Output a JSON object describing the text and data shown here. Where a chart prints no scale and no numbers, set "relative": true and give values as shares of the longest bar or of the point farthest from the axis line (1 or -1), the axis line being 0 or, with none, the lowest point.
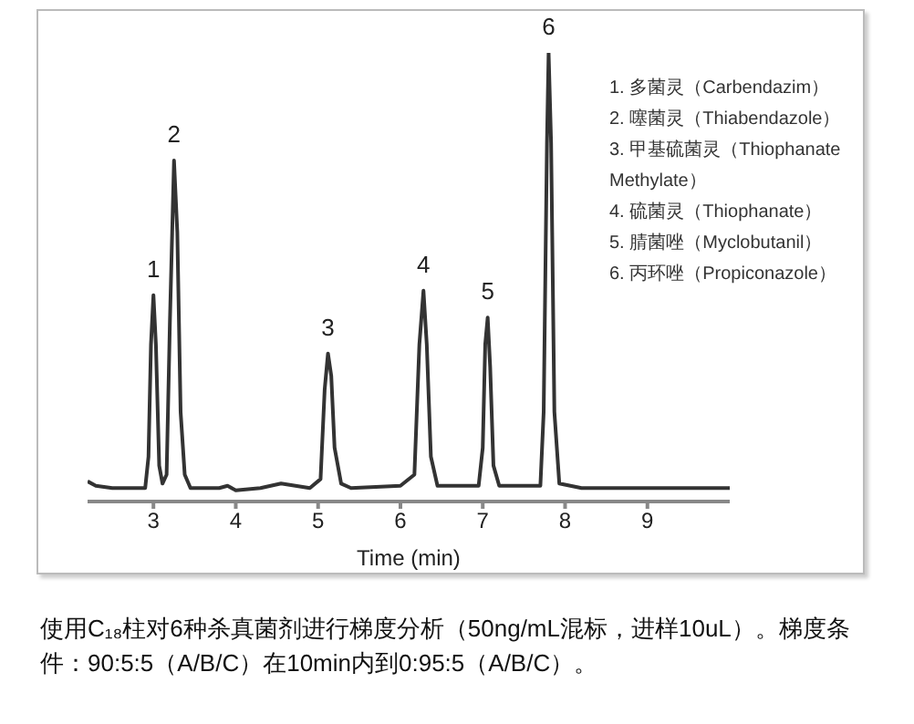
{
  "chart_data": {
    "type": "line",
    "relative": true,
    "xlabel": "Time (min)",
    "xlim": [
      2.2,
      10
    ],
    "xticks": [
      3,
      4,
      5,
      6,
      7,
      8,
      9
    ],
    "grid": false,
    "legend": false,
    "marker": "none",
    "line_style": "solid",
    "x": [
      2.2,
      2.3,
      2.5,
      2.9,
      2.94,
      2.97,
      3.0,
      3.03,
      3.07,
      3.11,
      3.16,
      3.2,
      3.25,
      3.29,
      3.33,
      3.38,
      3.45,
      3.8,
      3.9,
      4.0,
      4.3,
      4.55,
      4.9,
      5.03,
      5.08,
      5.12,
      5.16,
      5.2,
      5.28,
      5.4,
      6.0,
      6.17,
      6.23,
      6.28,
      6.32,
      6.37,
      6.45,
      6.95,
      7.0,
      7.03,
      7.06,
      7.09,
      7.13,
      7.2,
      7.7,
      7.74,
      7.78,
      7.8,
      7.83,
      7.87,
      7.93,
      8.2,
      10
    ],
    "series": [
      {
        "color": "#333333",
        "values": [
          0.045,
          0.035,
          0.03,
          0.03,
          0.1,
          0.35,
          0.46,
          0.35,
          0.08,
          0.04,
          0.06,
          0.4,
          0.76,
          0.6,
          0.2,
          0.06,
          0.03,
          0.03,
          0.035,
          0.025,
          0.03,
          0.04,
          0.03,
          0.05,
          0.25,
          0.33,
          0.28,
          0.12,
          0.04,
          0.03,
          0.035,
          0.06,
          0.35,
          0.47,
          0.35,
          0.1,
          0.035,
          0.035,
          0.12,
          0.35,
          0.41,
          0.3,
          0.08,
          0.035,
          0.035,
          0.2,
          0.8,
          1,
          0.8,
          0.2,
          0.04,
          0.03,
          0.03
        ]
      }
    ],
    "annotations": [
      {
        "text": "1",
        "x": 3.0,
        "y": 0.46
      },
      {
        "text": "2",
        "x": 3.25,
        "y": 0.76
      },
      {
        "text": "3",
        "x": 5.12,
        "y": 0.33
      },
      {
        "text": "4",
        "x": 6.28,
        "y": 0.47
      },
      {
        "text": "5",
        "x": 7.06,
        "y": 0.41
      },
      {
        "text": "6",
        "x": 7.8,
        "y": 1
      },
      "1. 多菌灵（Carbendazim）",
      "2. 噻菌灵（Thiabendazole）",
      "3. 甲基硫菌灵（Thiophanate Methylate）",
      "4. 硫菌灵（Thiophanate）",
      "5. 腈菌唑（Myclobutanil）",
      "6. 丙环唑（Propiconazole）",
      "使用C₁₈柱对6种杀真菌剂进行梯度分析（50ng/mL混标，进样10uL）。梯度条件：90:5:5（A/B/C）在10min内到0:95:5（A/B/C）。"
    ]
  }
}
